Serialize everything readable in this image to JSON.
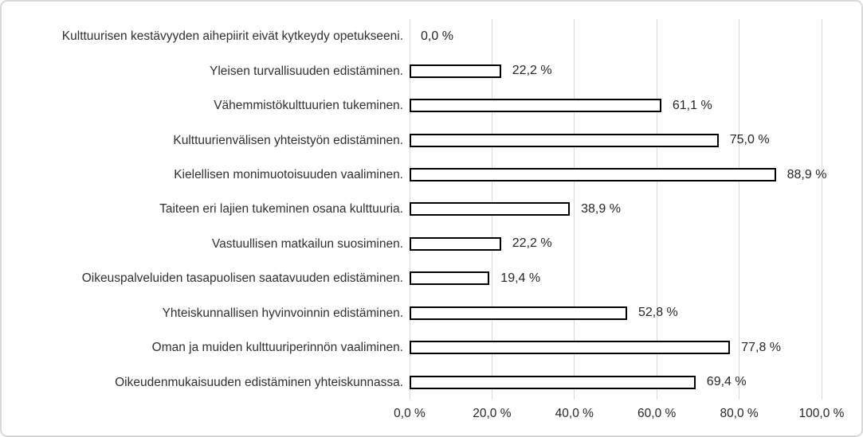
{
  "chart_data": {
    "type": "bar",
    "orientation": "horizontal",
    "title": "",
    "xlabel": "",
    "ylabel": "",
    "xlim": [
      0,
      100
    ],
    "grid": true,
    "categories": [
      "Kulttuurisen kestävyyden aihepiirit eivät kytkeydy opetukseeni.",
      "Yleisen turvallisuuden edistäminen.",
      "Vähemmistökulttuurien tukeminen.",
      "Kulttuurienvälisen yhteistyön edistäminen.",
      "Kielellisen monimuotoisuuden vaaliminen.",
      "Taiteen eri lajien tukeminen osana kulttuuria.",
      "Vastuullisen matkailun suosiminen.",
      "Oikeuspalveluiden tasapuolisen saatavuuden edistäminen.",
      "Yhteiskunnallisen hyvinvoinnin edistäminen.",
      "Oman ja muiden kulttuuriperinnön vaaliminen.",
      "Oikeudenmukaisuuden edistäminen yhteiskunnassa."
    ],
    "values": [
      0.0,
      22.2,
      61.1,
      75.0,
      88.9,
      38.9,
      22.2,
      19.4,
      52.8,
      77.8,
      69.4
    ],
    "data_labels": [
      "0,0 %",
      "22,2 %",
      "61,1 %",
      "75,0 %",
      "88,9 %",
      "38,9 %",
      "22,2 %",
      "19,4 %",
      "52,8 %",
      "77,8 %",
      "69,4 %"
    ],
    "x_tick_values": [
      0,
      20,
      40,
      60,
      80,
      100
    ],
    "x_tick_labels": [
      "0,0 %",
      "20,0 %",
      "40,0 %",
      "60,0 %",
      "80,0 %",
      "100,0 %"
    ],
    "colors": {
      "bar_fill": "#ffffff",
      "bar_border": "#000000",
      "gridline": "#d9d9d9",
      "text": "#303030",
      "chart_border": "#d9d9d9",
      "background": "#ffffff"
    },
    "bar_border_width_px": 2.5,
    "legend": null
  }
}
